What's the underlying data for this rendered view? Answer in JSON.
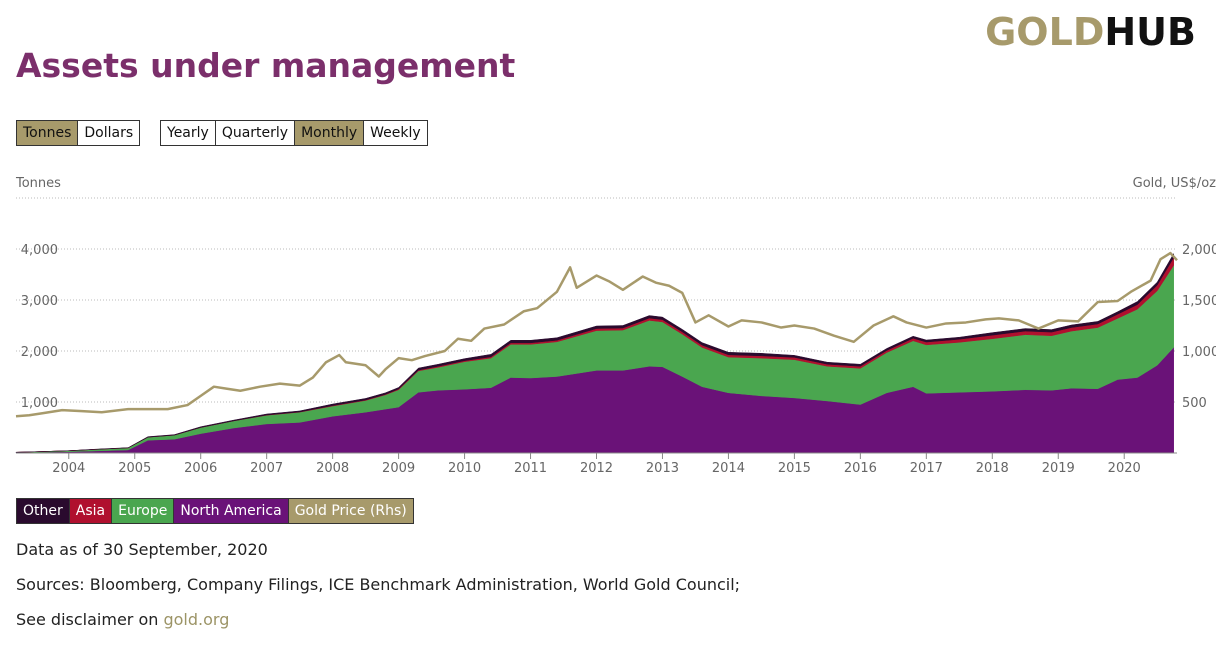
{
  "logo": {
    "gold": "GOLD",
    "hub": "HUB"
  },
  "title": "Assets under management",
  "unit_buttons": [
    {
      "label": "Tonnes",
      "active": true
    },
    {
      "label": "Dollars",
      "active": false
    }
  ],
  "period_buttons": [
    {
      "label": "Yearly",
      "active": false
    },
    {
      "label": "Quarterly",
      "active": false
    },
    {
      "label": "Monthly",
      "active": true
    },
    {
      "label": "Weekly",
      "active": false
    }
  ],
  "colors": {
    "other": "#2a0a2e",
    "asia": "#b0102e",
    "europe": "#4aa64f",
    "north_america": "#6a1278",
    "gold_price": "#a79a6b"
  },
  "chart_data": {
    "type": "area",
    "title": "Assets under management",
    "ylabel_left": "Tonnes",
    "ylabel_right": "Gold, US$/oz",
    "y_ticks_left": [
      "1,000",
      "2,000",
      "3,000",
      "4,000"
    ],
    "y_ticks_right": [
      "500",
      "1,000",
      "1,500",
      "2,000"
    ],
    "ylim_left": [
      0,
      5000
    ],
    "ylim_right": [
      0,
      2500
    ],
    "x_ticks": [
      "2004",
      "2005",
      "2006",
      "2007",
      "2008",
      "2009",
      "2010",
      "2011",
      "2012",
      "2013",
      "2014",
      "2015",
      "2016",
      "2017",
      "2018",
      "2019",
      "2020"
    ],
    "xlim": [
      2003.2,
      2020.8
    ],
    "x": [
      2003.2,
      2003.5,
      2004.0,
      2004.4,
      2004.9,
      2005.2,
      2005.6,
      2006.0,
      2006.5,
      2007.0,
      2007.5,
      2008.0,
      2008.5,
      2008.8,
      2009.0,
      2009.3,
      2009.6,
      2010.0,
      2010.4,
      2010.7,
      2011.0,
      2011.4,
      2011.7,
      2012.0,
      2012.4,
      2012.8,
      2013.0,
      2013.3,
      2013.6,
      2014.0,
      2014.5,
      2015.0,
      2015.5,
      2016.0,
      2016.4,
      2016.8,
      2017.0,
      2017.5,
      2018.0,
      2018.5,
      2018.9,
      2019.2,
      2019.6,
      2019.9,
      2020.2,
      2020.5,
      2020.75
    ],
    "series": [
      {
        "name": "North America",
        "values": [
          10,
          15,
          25,
          40,
          60,
          250,
          270,
          380,
          490,
          570,
          600,
          720,
          800,
          860,
          900,
          1190,
          1230,
          1250,
          1280,
          1480,
          1470,
          1500,
          1560,
          1620,
          1620,
          1700,
          1690,
          1500,
          1300,
          1180,
          1120,
          1080,
          1020,
          950,
          1180,
          1300,
          1170,
          1190,
          1210,
          1240,
          1230,
          1270,
          1260,
          1440,
          1480,
          1720,
          2070
        ]
      },
      {
        "name": "Europe",
        "values": [
          5,
          10,
          20,
          30,
          40,
          60,
          80,
          120,
          140,
          170,
          200,
          200,
          230,
          280,
          340,
          420,
          450,
          540,
          580,
          650,
          660,
          680,
          730,
          780,
          790,
          900,
          880,
          830,
          770,
          700,
          740,
          750,
          680,
          710,
          790,
          900,
          950,
          980,
          1030,
          1080,
          1070,
          1120,
          1200,
          1200,
          1340,
          1460,
          1610
        ]
      },
      {
        "name": "Asia",
        "values": [
          0,
          0,
          0,
          0,
          0,
          0,
          0,
          0,
          0,
          5,
          5,
          10,
          10,
          10,
          15,
          15,
          20,
          20,
          25,
          30,
          30,
          30,
          35,
          40,
          40,
          45,
          45,
          45,
          45,
          45,
          45,
          45,
          40,
          40,
          40,
          50,
          55,
          60,
          70,
          70,
          70,
          70,
          70,
          80,
          90,
          110,
          150
        ]
      },
      {
        "name": "Other",
        "values": [
          0,
          0,
          0,
          5,
          5,
          10,
          10,
          15,
          15,
          20,
          20,
          30,
          30,
          30,
          30,
          40,
          40,
          40,
          50,
          50,
          50,
          50,
          50,
          50,
          50,
          50,
          50,
          50,
          50,
          50,
          50,
          40,
          40,
          40,
          40,
          40,
          40,
          40,
          50,
          50,
          50,
          50,
          50,
          50,
          60,
          60,
          80
        ]
      }
    ],
    "gold_price": {
      "name": "Gold Price (Rhs)",
      "x": [
        2003.2,
        2003.4,
        2003.6,
        2003.9,
        2004.2,
        2004.5,
        2004.9,
        2005.1,
        2005.5,
        2005.8,
        2006.0,
        2006.2,
        2006.4,
        2006.6,
        2006.9,
        2007.2,
        2007.5,
        2007.7,
        2007.9,
        2008.1,
        2008.2,
        2008.5,
        2008.7,
        2008.8,
        2009.0,
        2009.2,
        2009.4,
        2009.7,
        2009.9,
        2010.1,
        2010.3,
        2010.6,
        2010.9,
        2011.1,
        2011.4,
        2011.6,
        2011.7,
        2012.0,
        2012.2,
        2012.4,
        2012.7,
        2012.9,
        2013.1,
        2013.3,
        2013.5,
        2013.7,
        2014.0,
        2014.2,
        2014.5,
        2014.8,
        2015.0,
        2015.3,
        2015.6,
        2015.9,
        2016.2,
        2016.5,
        2016.7,
        2017.0,
        2017.3,
        2017.6,
        2017.9,
        2018.1,
        2018.4,
        2018.7,
        2019.0,
        2019.3,
        2019.6,
        2019.9,
        2020.1,
        2020.4,
        2020.55,
        2020.7,
        2020.8
      ],
      "values": [
        360,
        370,
        390,
        420,
        410,
        400,
        430,
        430,
        430,
        470,
        560,
        650,
        630,
        610,
        650,
        680,
        660,
        740,
        890,
        960,
        890,
        860,
        750,
        820,
        930,
        910,
        950,
        1000,
        1120,
        1100,
        1220,
        1260,
        1390,
        1420,
        1580,
        1820,
        1620,
        1740,
        1680,
        1600,
        1730,
        1670,
        1640,
        1570,
        1280,
        1350,
        1240,
        1300,
        1280,
        1230,
        1250,
        1220,
        1150,
        1090,
        1250,
        1340,
        1280,
        1230,
        1270,
        1280,
        1310,
        1320,
        1300,
        1220,
        1300,
        1290,
        1480,
        1490,
        1580,
        1690,
        1900,
        1960,
        1890
      ]
    }
  },
  "legend": [
    {
      "label": "Other",
      "color": "#2a0a2e"
    },
    {
      "label": "Asia",
      "color": "#b0102e"
    },
    {
      "label": "Europe",
      "color": "#4aa64f"
    },
    {
      "label": "North America",
      "color": "#6a1278"
    },
    {
      "label": "Gold Price (Rhs)",
      "color": "#a79a6b"
    }
  ],
  "notes": {
    "data_as_of": "Data as of 30 September, 2020",
    "sources": "Sources: Bloomberg, Company Filings, ICE Benchmark Administration, World Gold Council;",
    "disclaimer_prefix": "See disclaimer on ",
    "disclaimer_link": "gold.org"
  }
}
